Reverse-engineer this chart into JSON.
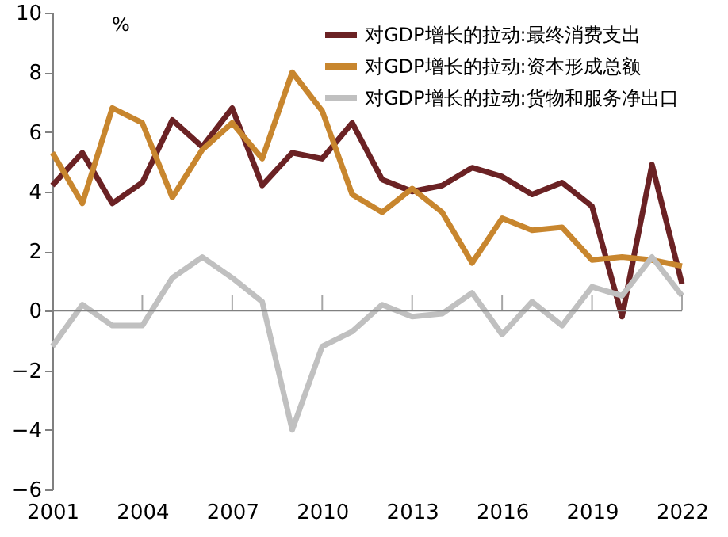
{
  "chart_data": {
    "type": "line",
    "ylabel": "%",
    "x": [
      2001,
      2002,
      2003,
      2004,
      2005,
      2006,
      2007,
      2008,
      2009,
      2010,
      2011,
      2012,
      2013,
      2014,
      2015,
      2016,
      2017,
      2018,
      2019,
      2020,
      2021,
      2022
    ],
    "series": [
      {
        "name": "对GDP增长的拉动:最终消费支出",
        "color": "#6b2224",
        "values": [
          4.2,
          5.3,
          3.6,
          4.3,
          6.4,
          5.5,
          6.8,
          4.2,
          5.3,
          5.1,
          6.3,
          4.4,
          4.0,
          4.2,
          4.8,
          4.5,
          3.9,
          4.3,
          3.5,
          -0.2,
          4.9,
          0.9
        ]
      },
      {
        "name": "对GDP增长的拉动:资本形成总额",
        "color": "#c8862e",
        "values": [
          5.3,
          3.6,
          6.8,
          6.3,
          3.8,
          5.4,
          6.3,
          5.1,
          8.0,
          6.7,
          3.9,
          3.3,
          4.1,
          3.3,
          1.6,
          3.1,
          2.7,
          2.8,
          1.7,
          1.8,
          1.7,
          1.5
        ]
      },
      {
        "name": "对GDP增长的拉动:货物和服务净出口",
        "color": "#c0c0c0",
        "values": [
          -1.2,
          0.2,
          -0.5,
          -0.5,
          1.1,
          1.8,
          1.1,
          0.3,
          -4.0,
          -1.2,
          -0.7,
          0.2,
          -0.2,
          -0.1,
          0.6,
          -0.8,
          0.3,
          -0.5,
          0.8,
          0.5,
          1.8,
          0.5
        ]
      }
    ],
    "xlim": [
      2001,
      2022
    ],
    "xticks": [
      2001,
      2004,
      2007,
      2010,
      2013,
      2016,
      2019,
      2022
    ],
    "ylim": [
      -6,
      10
    ],
    "yticks": [
      -6,
      -4,
      -2,
      0,
      2,
      4,
      6,
      8,
      10
    ],
    "ref_lines": [
      {
        "axis": "y",
        "value": 0,
        "color": "#808080"
      }
    ],
    "grid": false,
    "legend": "top right",
    "marker": "none",
    "line_style": "solid"
  }
}
